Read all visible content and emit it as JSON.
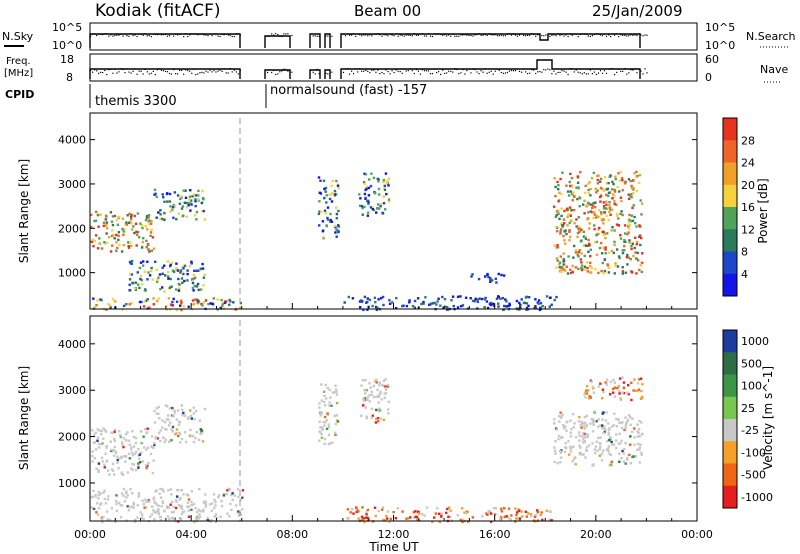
{
  "header": {
    "station": "Kodiak (fitACF)",
    "beam": "Beam 00",
    "date": "25/Jan/2009"
  },
  "status_panels": {
    "nsky_label": "N.Sky",
    "nsky_ticks": [
      "10^5",
      "10^0"
    ],
    "nsearch_label": "N.Search",
    "nsearch_ticks": [
      "10^5",
      "10^0"
    ],
    "freq_label_1": "Freq.",
    "freq_label_2": "[MHz]",
    "freq_ticks": [
      "18",
      "8"
    ],
    "nave_label": "Nave",
    "nave_ticks": [
      "60",
      "0"
    ],
    "cpid_label": "CPID",
    "cpid_modes": [
      "themis 3300",
      "normalsound (fast) -157"
    ]
  },
  "chart_data": [
    {
      "type": "heatmap",
      "title": "",
      "parameter": "Power",
      "colorbar_label": "Power [dB]",
      "colorbar_ticks": [
        "28",
        "24",
        "20",
        "16",
        "12",
        "8",
        "4"
      ],
      "colorbar_colors": [
        "#e6321e",
        "#f06428",
        "#f0a028",
        "#f5d23c",
        "#4fa45a",
        "#2a7a5e",
        "#1e46c8",
        "#1414e6"
      ],
      "xlabel": "Time UT",
      "ylabel": "Slant Range [km]",
      "xlim": [
        "00:00",
        "24:00"
      ],
      "ylim": [
        180,
        4600
      ],
      "x_ticks": [
        "00:00",
        "04:00",
        "08:00",
        "12:00",
        "16:00",
        "20:00",
        "00:00"
      ],
      "y_ticks": [
        "1000",
        "2000",
        "3000",
        "4000"
      ],
      "scatter_regions_hours_km": [
        {
          "t": [
            0.0,
            2.5
          ],
          "range": [
            1500,
            2400
          ],
          "level": "high"
        },
        {
          "t": [
            2.5,
            4.5
          ],
          "range": [
            2200,
            2900
          ],
          "level": "mid"
        },
        {
          "t": [
            1.5,
            4.5
          ],
          "range": [
            600,
            1300
          ],
          "level": "mid"
        },
        {
          "t": [
            0.0,
            6.0
          ],
          "range": [
            180,
            450
          ],
          "level": "mixed"
        },
        {
          "t": [
            9.0,
            9.8
          ],
          "range": [
            1800,
            3200
          ],
          "level": "mid"
        },
        {
          "t": [
            10.6,
            11.8
          ],
          "range": [
            2300,
            3300
          ],
          "level": "mid"
        },
        {
          "t": [
            10.0,
            18.5
          ],
          "range": [
            180,
            500
          ],
          "level": "low"
        },
        {
          "t": [
            18.3,
            21.8
          ],
          "range": [
            1000,
            3300
          ],
          "level": "high"
        },
        {
          "t": [
            15.0,
            16.5
          ],
          "range": [
            800,
            1000
          ],
          "level": "low"
        }
      ]
    },
    {
      "type": "heatmap",
      "title": "",
      "parameter": "Velocity",
      "colorbar_label": "Velocity [m s^-1]",
      "colorbar_ticks": [
        "1000",
        "500",
        "100",
        "25",
        "-25",
        "-100",
        "-500",
        "-1000"
      ],
      "colorbar_colors": [
        "#1e3ca0",
        "#2d6e46",
        "#3c9646",
        "#78c850",
        "#c8c8c8",
        "#f5a028",
        "#f06414",
        "#e61e1e"
      ],
      "xlabel": "Time UT",
      "ylabel": "Slant Range [km]",
      "xlim": [
        "00:00",
        "24:00"
      ],
      "ylim": [
        180,
        4600
      ],
      "x_ticks": [
        "00:00",
        "04:00",
        "08:00",
        "12:00",
        "16:00",
        "20:00",
        "00:00"
      ],
      "y_ticks": [
        "1000",
        "2000",
        "3000",
        "4000"
      ],
      "scatter_regions_hours_km": [
        {
          "t": [
            0.0,
            2.5
          ],
          "range": [
            1200,
            2200
          ],
          "level": "ground"
        },
        {
          "t": [
            2.5,
            4.5
          ],
          "range": [
            1900,
            2700
          ],
          "level": "ground"
        },
        {
          "t": [
            0.0,
            6.0
          ],
          "range": [
            180,
            900
          ],
          "level": "ground"
        },
        {
          "t": [
            9.0,
            9.8
          ],
          "range": [
            1800,
            3200
          ],
          "level": "ground"
        },
        {
          "t": [
            10.6,
            11.8
          ],
          "range": [
            2300,
            3300
          ],
          "level": "ground"
        },
        {
          "t": [
            10.0,
            18.5
          ],
          "range": [
            180,
            500
          ],
          "level": "negative"
        },
        {
          "t": [
            18.3,
            21.8
          ],
          "range": [
            1400,
            2600
          ],
          "level": "ground"
        },
        {
          "t": [
            19.5,
            21.8
          ],
          "range": [
            2800,
            3300
          ],
          "level": "negative"
        }
      ]
    }
  ],
  "colors": {
    "ground_scatter": "#c8c8c8",
    "background": "#ffffff"
  }
}
